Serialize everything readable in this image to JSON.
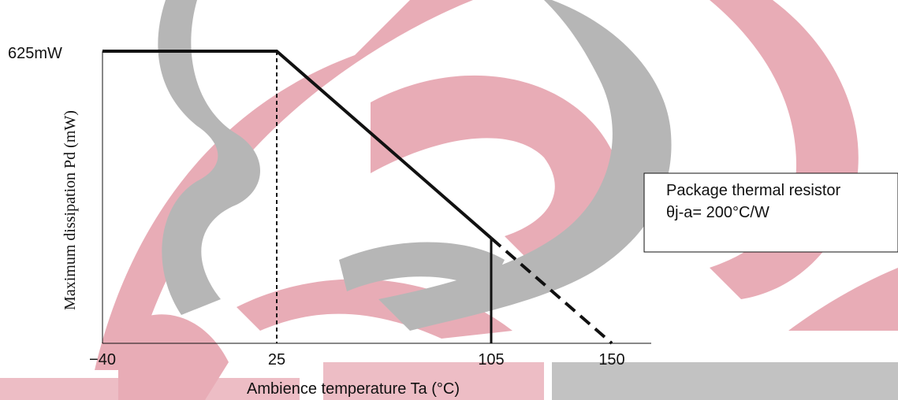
{
  "chart_data": {
    "type": "line",
    "title": "",
    "xlabel": "Ambience temperature Ta (°C)",
    "ylabel": "Maximum dissipation Pd (mW)",
    "xlim": [
      -40,
      150
    ],
    "ylim": [
      0,
      625
    ],
    "x_ticks": [
      "−40",
      "25",
      "105",
      "150"
    ],
    "y_ticks": [
      "625mW"
    ],
    "series": [
      {
        "style": "solid",
        "x": [
          -40,
          25,
          105
        ],
        "y": [
          625,
          625,
          225
        ]
      },
      {
        "style": "dashed",
        "x": [
          105,
          150
        ],
        "y": [
          225,
          0
        ]
      }
    ],
    "reference_lines": [
      {
        "x": 25,
        "style": "dotted"
      },
      {
        "x": 105,
        "style": "solid"
      }
    ],
    "annotation": {
      "line1": "Package thermal resistor",
      "line2": "θj-a= 200°C/W"
    },
    "grid": false,
    "legend": "none",
    "watermark_colors": [
      "#e3a3ae",
      "#b3b3b3"
    ]
  }
}
